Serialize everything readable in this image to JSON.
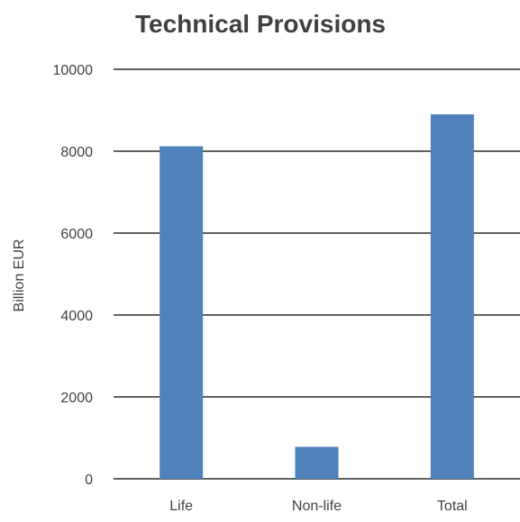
{
  "chart_data": {
    "type": "bar",
    "title": "Technical Provisions",
    "xlabel": "",
    "ylabel": "Billion EUR",
    "categories": [
      "Life",
      "Non-life",
      "Total"
    ],
    "values": [
      8120,
      780,
      8900
    ],
    "ylim": [
      0,
      10000
    ],
    "yticks": [
      0,
      2000,
      4000,
      6000,
      8000,
      10000
    ],
    "grid": true,
    "legend": "none",
    "colors": {
      "bar": "#4f81bd",
      "grid": "#000000",
      "text": "#404040"
    }
  }
}
